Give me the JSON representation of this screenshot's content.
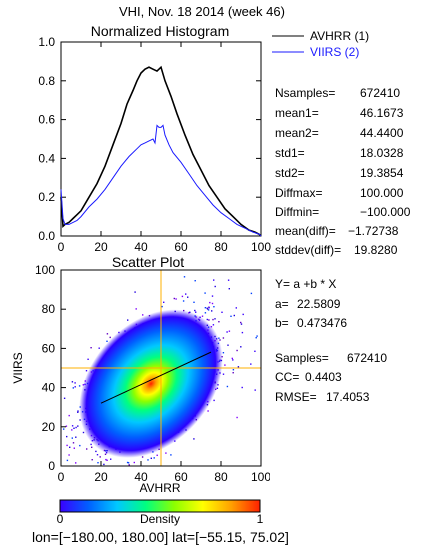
{
  "header": {
    "title": "VHI,  Nov. 18 2014 (week 46)"
  },
  "chart_data": [
    {
      "type": "line",
      "title": "Normalized Histogram",
      "xlim": [
        0,
        100
      ],
      "ylim": [
        0.0,
        1.0
      ],
      "xticks": [
        "0",
        "20",
        "40",
        "60",
        "80",
        "100"
      ],
      "yticks": [
        "0.0",
        "0.2",
        "0.4",
        "0.6",
        "0.8",
        "1.0"
      ],
      "legend": {
        "placement": "right"
      },
      "series": [
        {
          "name": "AVHRR (1)",
          "color": "#000000",
          "x": [
            0,
            1,
            2,
            4,
            6,
            8,
            10,
            14,
            18,
            22,
            26,
            30,
            33,
            36,
            38,
            40,
            42,
            44,
            46,
            48,
            50,
            52,
            55,
            58,
            62,
            66,
            70,
            74,
            78,
            82,
            86,
            90,
            94,
            97,
            99,
            100
          ],
          "y": [
            0.2,
            0.05,
            0.06,
            0.07,
            0.09,
            0.11,
            0.13,
            0.2,
            0.27,
            0.36,
            0.47,
            0.58,
            0.68,
            0.75,
            0.8,
            0.84,
            0.86,
            0.87,
            0.86,
            0.85,
            0.87,
            0.8,
            0.72,
            0.63,
            0.52,
            0.42,
            0.34,
            0.26,
            0.2,
            0.14,
            0.1,
            0.06,
            0.03,
            0.02,
            0.01,
            0.0
          ]
        },
        {
          "name": "VIIRS (2)",
          "color": "#1a1aff",
          "x": [
            0,
            1,
            2,
            4,
            6,
            8,
            10,
            14,
            18,
            22,
            26,
            30,
            34,
            38,
            40,
            42,
            44,
            46,
            47,
            48,
            49,
            50,
            51,
            52,
            54,
            56,
            60,
            64,
            68,
            72,
            76,
            80,
            84,
            88,
            92,
            96,
            99,
            100
          ],
          "y": [
            0.24,
            0.09,
            0.06,
            0.06,
            0.07,
            0.08,
            0.1,
            0.15,
            0.19,
            0.24,
            0.3,
            0.36,
            0.41,
            0.45,
            0.47,
            0.48,
            0.49,
            0.5,
            0.48,
            0.57,
            0.56,
            0.56,
            0.57,
            0.52,
            0.47,
            0.43,
            0.38,
            0.32,
            0.26,
            0.21,
            0.16,
            0.12,
            0.09,
            0.06,
            0.04,
            0.02,
            0.01,
            0.0
          ]
        }
      ],
      "stats": [
        {
          "label": "Nsamples=",
          "value": "672410"
        },
        {
          "label": "mean1=",
          "value": "46.1673"
        },
        {
          "label": "mean2=",
          "value": "44.4400"
        },
        {
          "label": "std1=",
          "value": "18.0328"
        },
        {
          "label": "std2=",
          "value": "19.3854"
        },
        {
          "label": "Diffmax=",
          "value": "100.000"
        },
        {
          "label": "Diffmin=",
          "value": "−100.000"
        },
        {
          "label": "mean(diff)=",
          "value": "−1.72738"
        },
        {
          "label": "stddev(diff)=",
          "value": "19.8280"
        }
      ]
    },
    {
      "type": "heatmap",
      "title": "Scatter Plot",
      "xlabel": "AVHRR",
      "ylabel": "VIIRS",
      "xlim": [
        0,
        100
      ],
      "ylim": [
        0,
        100
      ],
      "xticks": [
        "0",
        "20",
        "40",
        "60",
        "80",
        "100"
      ],
      "yticks": [
        "0",
        "20",
        "40",
        "60",
        "80",
        "100"
      ],
      "density_peak": {
        "x": 45,
        "y": 42
      },
      "fit_line": {
        "a": 22.5809,
        "b": 0.473476,
        "x": [
          20,
          75
        ]
      },
      "crosshair": {
        "x": 50,
        "y": 50,
        "color": "#ffb000"
      },
      "stats": {
        "equation": "Y= a +b * X",
        "a_label": "a=",
        "a_value": "22.5809",
        "b_label": "b=",
        "b_value": "0.473476",
        "samples_label": "Samples=",
        "samples_value": "672410",
        "cc_label": "CC=",
        "cc_value": "0.4403",
        "rmse_label": "RMSE=",
        "rmse_value": "17.4053"
      },
      "colorbar": {
        "label": "Density",
        "min": "0",
        "max": "1",
        "colors": [
          "#3a00ff",
          "#0060ff",
          "#00c8ff",
          "#00ff80",
          "#8cff00",
          "#ffff00",
          "#ffa000",
          "#ff2000"
        ]
      }
    }
  ],
  "footer": {
    "coords": "lon=[−180.00, 180.00] lat=[−55.15, 75.02]"
  }
}
